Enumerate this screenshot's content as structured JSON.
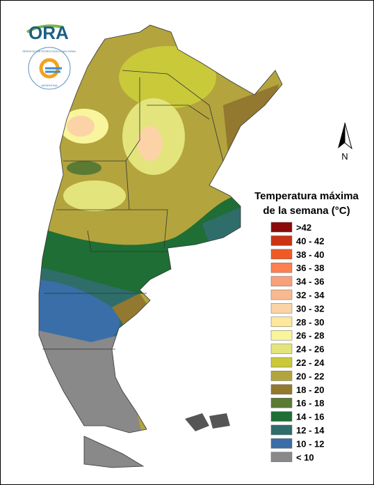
{
  "logo": {
    "name": "ORA",
    "seal_top": "SERVICIO METEOROLÓGICO NACIONAL",
    "seal_bottom": "ARGENTINA"
  },
  "north": "N",
  "legend": {
    "title_lines": [
      "Temperatura máxima",
      "de la semana (°C)"
    ],
    "items": [
      {
        "label": ">42",
        "color": "#8b0a0a"
      },
      {
        "label": "40 - 42",
        "color": "#cc3314"
      },
      {
        "label": "38 - 40",
        "color": "#ee5a24"
      },
      {
        "label": "36 - 38",
        "color": "#ff7f4f"
      },
      {
        "label": "34 - 36",
        "color": "#f7a07a"
      },
      {
        "label": "32 - 34",
        "color": "#f9b98f"
      },
      {
        "label": "30 - 32",
        "color": "#fcd3a7"
      },
      {
        "label": "28 - 30",
        "color": "#fde89b"
      },
      {
        "label": "26 - 28",
        "color": "#f8f59c"
      },
      {
        "label": "24 - 26",
        "color": "#e3e47c"
      },
      {
        "label": "22 - 24",
        "color": "#c9c93a"
      },
      {
        "label": "20 - 22",
        "color": "#b3a43e"
      },
      {
        "label": "18 - 20",
        "color": "#93782f"
      },
      {
        "label": "16 - 18",
        "color": "#5b7a34"
      },
      {
        "label": "14 - 16",
        "color": "#1f6e35"
      },
      {
        "label": "12 - 14",
        "color": "#2f6d6b"
      },
      {
        "label": "10 - 12",
        "color": "#3a6ea8"
      },
      {
        "label": "< 10",
        "color": "#898989"
      }
    ]
  }
}
